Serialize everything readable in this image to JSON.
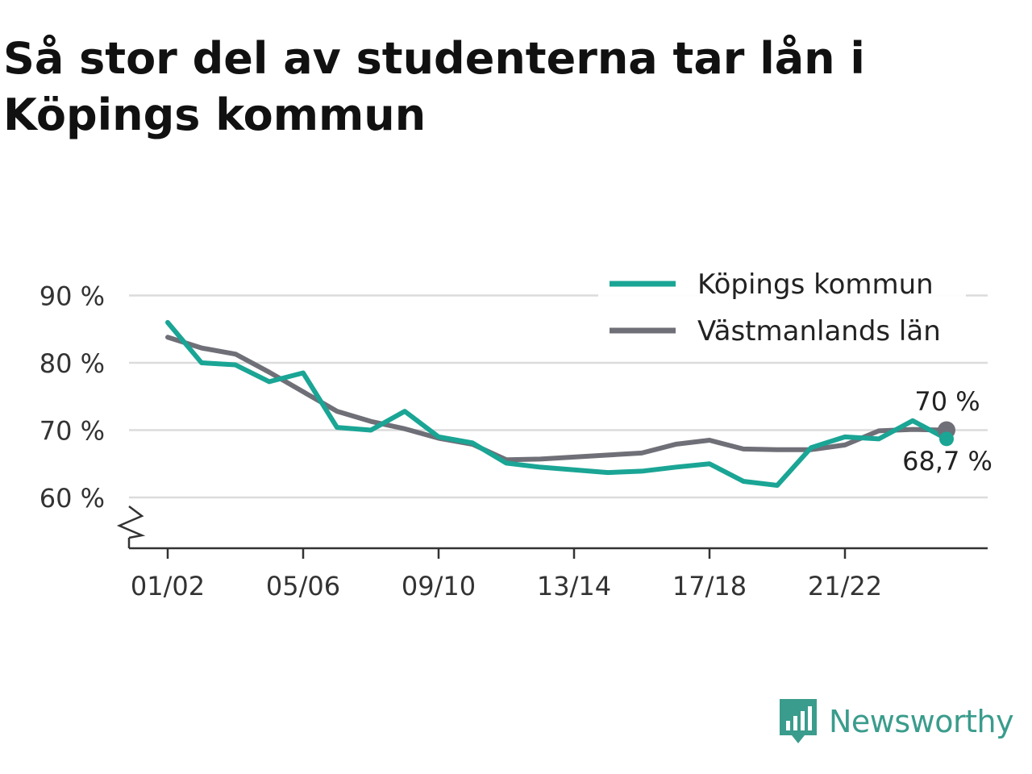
{
  "title": "Så stor del av studenterna tar lån i Köpings kommun",
  "brand": {
    "name": "Newsworthy",
    "icon": "newsworthy-logo-icon",
    "color": "#3a9c8c"
  },
  "chart_data": {
    "type": "line",
    "title": "Så stor del av studenterna tar lån i Köpings kommun",
    "xlabel": "",
    "ylabel": "",
    "x": [
      "01/02",
      "02/03",
      "03/04",
      "04/05",
      "05/06",
      "06/07",
      "07/08",
      "08/09",
      "09/10",
      "10/11",
      "11/12",
      "12/13",
      "13/14",
      "14/15",
      "15/16",
      "16/17",
      "17/18",
      "18/19",
      "19/20",
      "20/21",
      "21/22",
      "22/23",
      "23/24",
      "24/25"
    ],
    "x_tick_labels": [
      "01/02",
      "05/06",
      "09/10",
      "13/14",
      "17/18",
      "21/22"
    ],
    "y_tick_labels": [
      "60 %",
      "70 %",
      "80 %",
      "90 %"
    ],
    "y_ticks": [
      60,
      70,
      80,
      90
    ],
    "ylim": [
      52.5,
      90
    ],
    "axis_break": true,
    "grid": true,
    "legend_position": "top-right",
    "series": [
      {
        "name": "Köpings kommun",
        "color": "#1aa595",
        "values": [
          86.0,
          80.0,
          79.7,
          77.2,
          78.5,
          70.4,
          70.0,
          72.8,
          69.0,
          68.1,
          65.1,
          64.5,
          64.1,
          63.7,
          63.9,
          64.5,
          65.0,
          62.4,
          61.8,
          67.4,
          69.0,
          68.7,
          71.4,
          68.7
        ],
        "end_label": "68,7 %"
      },
      {
        "name": "Västmanlands län",
        "color": "#6f6f78",
        "values": [
          83.8,
          82.2,
          81.3,
          78.6,
          75.7,
          72.8,
          71.3,
          70.2,
          68.8,
          67.9,
          65.6,
          65.7,
          66.0,
          66.3,
          66.6,
          67.9,
          68.5,
          67.2,
          67.1,
          67.1,
          67.8,
          69.9,
          70.1,
          70.0
        ],
        "end_label": "70 %"
      }
    ]
  }
}
